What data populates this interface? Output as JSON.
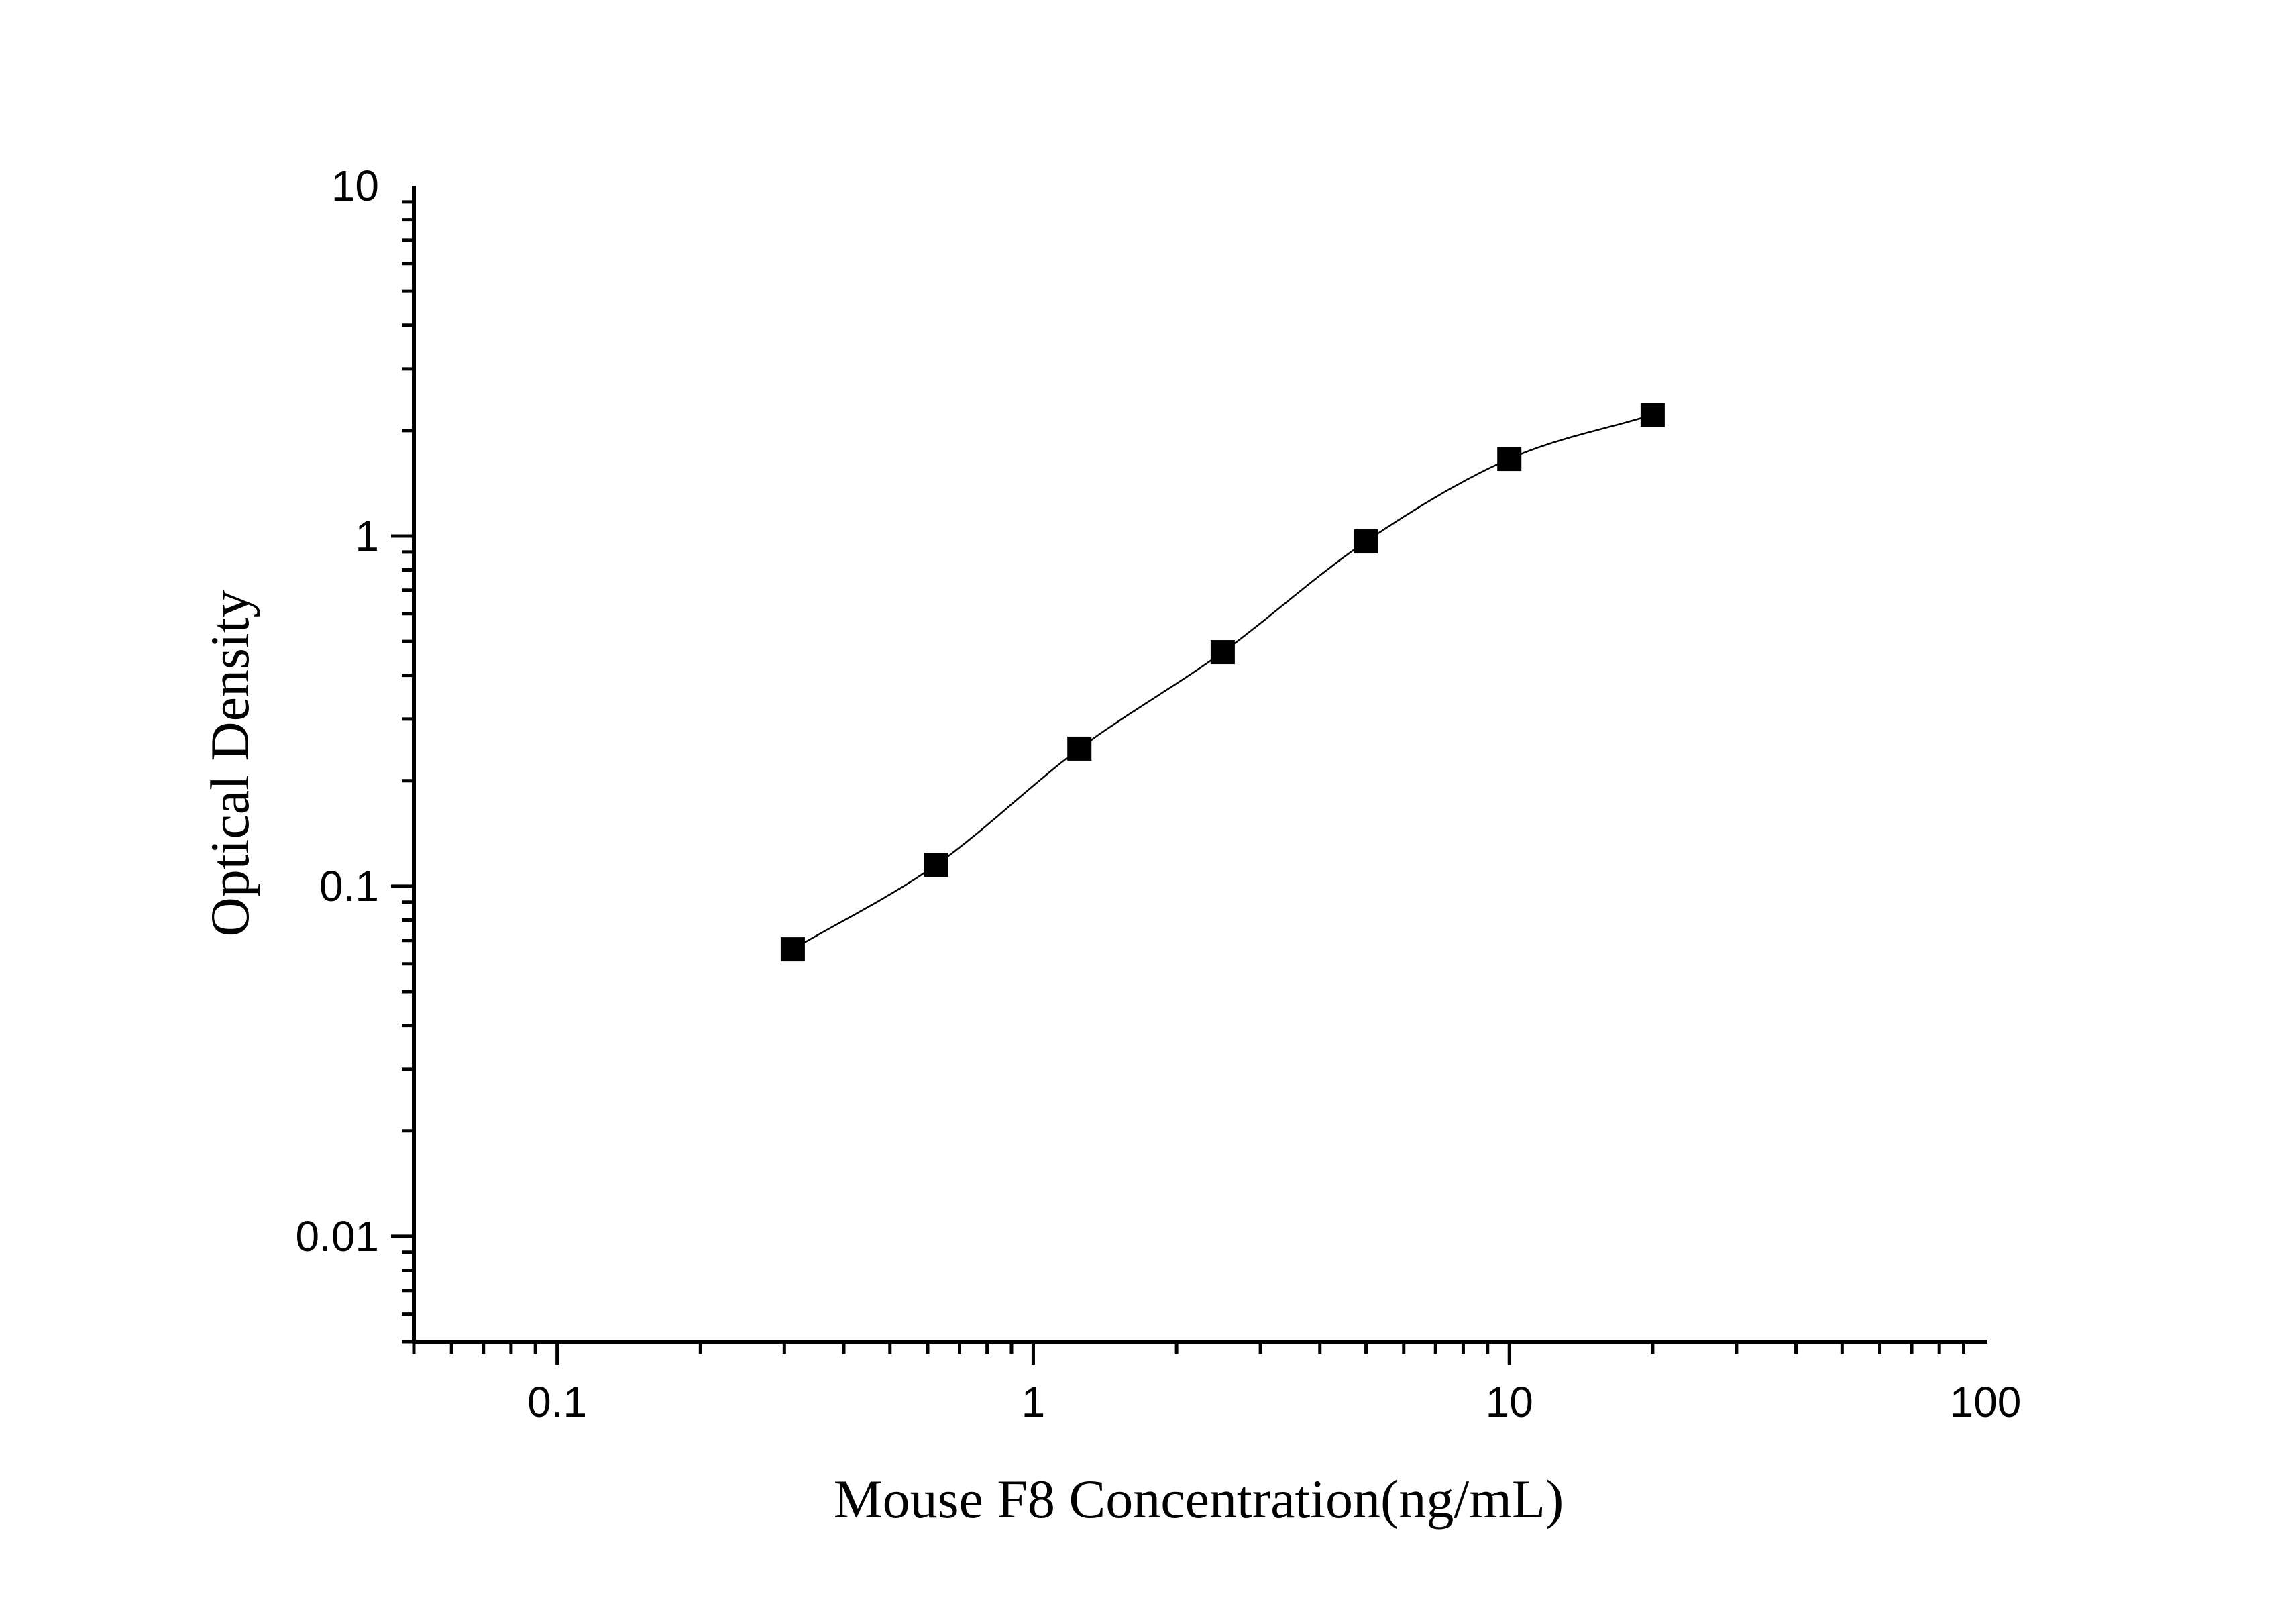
{
  "chart_data": {
    "type": "scatter",
    "title": "",
    "xlabel": "Mouse F8 Concentration(ng/mL)",
    "ylabel": "Optical Density",
    "x_scale": "log",
    "y_scale": "log",
    "xlim": [
      0.05,
      100
    ],
    "ylim": [
      0.005,
      10
    ],
    "x_ticks": [
      {
        "value": 0.1,
        "label": "0.1"
      },
      {
        "value": 1,
        "label": "1"
      },
      {
        "value": 10,
        "label": "10"
      },
      {
        "value": 100,
        "label": "100"
      }
    ],
    "y_ticks": [
      {
        "value": 0.01,
        "label": "0.01"
      },
      {
        "value": 0.1,
        "label": "0.1"
      },
      {
        "value": 1,
        "label": "1"
      },
      {
        "value": 10,
        "label": "10"
      }
    ],
    "grid": false,
    "legend": "none",
    "series": [
      {
        "marker": "square",
        "color": "#000000",
        "points": [
          {
            "x": 0.3125,
            "y": 0.066
          },
          {
            "x": 0.625,
            "y": 0.115
          },
          {
            "x": 1.25,
            "y": 0.247
          },
          {
            "x": 2.5,
            "y": 0.466
          },
          {
            "x": 5,
            "y": 0.965
          },
          {
            "x": 10,
            "y": 1.66
          },
          {
            "x": 20,
            "y": 2.22
          }
        ]
      }
    ],
    "fit_curve": {
      "model": "4PL",
      "color": "#000000",
      "x_range": [
        0.3125,
        20
      ]
    }
  }
}
